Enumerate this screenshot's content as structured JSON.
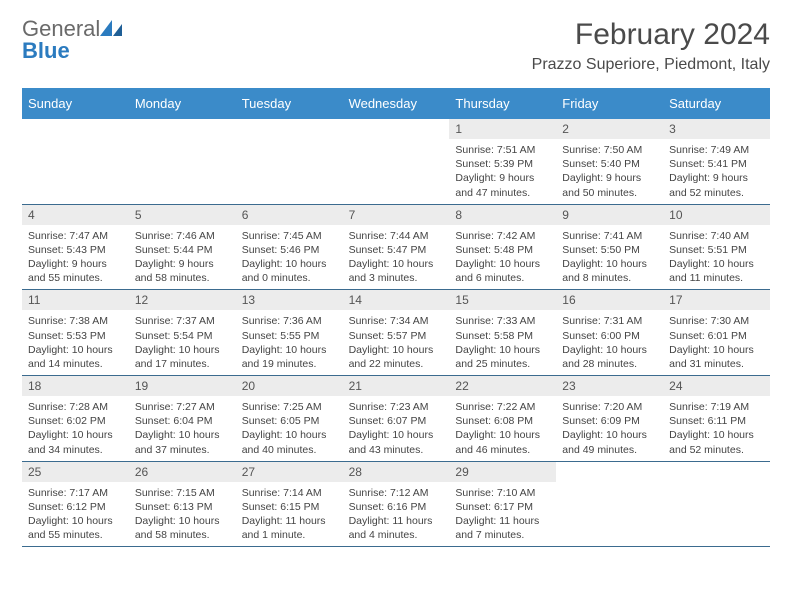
{
  "logo": {
    "text_general": "General",
    "text_blue": "Blue"
  },
  "title": "February 2024",
  "location": "Prazzo Superiore, Piedmont, Italy",
  "colors": {
    "header_bg": "#3b8bc9",
    "header_text": "#ffffff",
    "daynum_bg": "#ececec",
    "week_border": "#3b6b8f",
    "logo_general": "#6a6a6a",
    "logo_blue": "#2b7bbf"
  },
  "day_labels": [
    "Sunday",
    "Monday",
    "Tuesday",
    "Wednesday",
    "Thursday",
    "Friday",
    "Saturday"
  ],
  "weeks": [
    [
      null,
      null,
      null,
      null,
      {
        "n": "1",
        "sr": "Sunrise: 7:51 AM",
        "ss": "Sunset: 5:39 PM",
        "dl1": "Daylight: 9 hours",
        "dl2": "and 47 minutes."
      },
      {
        "n": "2",
        "sr": "Sunrise: 7:50 AM",
        "ss": "Sunset: 5:40 PM",
        "dl1": "Daylight: 9 hours",
        "dl2": "and 50 minutes."
      },
      {
        "n": "3",
        "sr": "Sunrise: 7:49 AM",
        "ss": "Sunset: 5:41 PM",
        "dl1": "Daylight: 9 hours",
        "dl2": "and 52 minutes."
      }
    ],
    [
      {
        "n": "4",
        "sr": "Sunrise: 7:47 AM",
        "ss": "Sunset: 5:43 PM",
        "dl1": "Daylight: 9 hours",
        "dl2": "and 55 minutes."
      },
      {
        "n": "5",
        "sr": "Sunrise: 7:46 AM",
        "ss": "Sunset: 5:44 PM",
        "dl1": "Daylight: 9 hours",
        "dl2": "and 58 minutes."
      },
      {
        "n": "6",
        "sr": "Sunrise: 7:45 AM",
        "ss": "Sunset: 5:46 PM",
        "dl1": "Daylight: 10 hours",
        "dl2": "and 0 minutes."
      },
      {
        "n": "7",
        "sr": "Sunrise: 7:44 AM",
        "ss": "Sunset: 5:47 PM",
        "dl1": "Daylight: 10 hours",
        "dl2": "and 3 minutes."
      },
      {
        "n": "8",
        "sr": "Sunrise: 7:42 AM",
        "ss": "Sunset: 5:48 PM",
        "dl1": "Daylight: 10 hours",
        "dl2": "and 6 minutes."
      },
      {
        "n": "9",
        "sr": "Sunrise: 7:41 AM",
        "ss": "Sunset: 5:50 PM",
        "dl1": "Daylight: 10 hours",
        "dl2": "and 8 minutes."
      },
      {
        "n": "10",
        "sr": "Sunrise: 7:40 AM",
        "ss": "Sunset: 5:51 PM",
        "dl1": "Daylight: 10 hours",
        "dl2": "and 11 minutes."
      }
    ],
    [
      {
        "n": "11",
        "sr": "Sunrise: 7:38 AM",
        "ss": "Sunset: 5:53 PM",
        "dl1": "Daylight: 10 hours",
        "dl2": "and 14 minutes."
      },
      {
        "n": "12",
        "sr": "Sunrise: 7:37 AM",
        "ss": "Sunset: 5:54 PM",
        "dl1": "Daylight: 10 hours",
        "dl2": "and 17 minutes."
      },
      {
        "n": "13",
        "sr": "Sunrise: 7:36 AM",
        "ss": "Sunset: 5:55 PM",
        "dl1": "Daylight: 10 hours",
        "dl2": "and 19 minutes."
      },
      {
        "n": "14",
        "sr": "Sunrise: 7:34 AM",
        "ss": "Sunset: 5:57 PM",
        "dl1": "Daylight: 10 hours",
        "dl2": "and 22 minutes."
      },
      {
        "n": "15",
        "sr": "Sunrise: 7:33 AM",
        "ss": "Sunset: 5:58 PM",
        "dl1": "Daylight: 10 hours",
        "dl2": "and 25 minutes."
      },
      {
        "n": "16",
        "sr": "Sunrise: 7:31 AM",
        "ss": "Sunset: 6:00 PM",
        "dl1": "Daylight: 10 hours",
        "dl2": "and 28 minutes."
      },
      {
        "n": "17",
        "sr": "Sunrise: 7:30 AM",
        "ss": "Sunset: 6:01 PM",
        "dl1": "Daylight: 10 hours",
        "dl2": "and 31 minutes."
      }
    ],
    [
      {
        "n": "18",
        "sr": "Sunrise: 7:28 AM",
        "ss": "Sunset: 6:02 PM",
        "dl1": "Daylight: 10 hours",
        "dl2": "and 34 minutes."
      },
      {
        "n": "19",
        "sr": "Sunrise: 7:27 AM",
        "ss": "Sunset: 6:04 PM",
        "dl1": "Daylight: 10 hours",
        "dl2": "and 37 minutes."
      },
      {
        "n": "20",
        "sr": "Sunrise: 7:25 AM",
        "ss": "Sunset: 6:05 PM",
        "dl1": "Daylight: 10 hours",
        "dl2": "and 40 minutes."
      },
      {
        "n": "21",
        "sr": "Sunrise: 7:23 AM",
        "ss": "Sunset: 6:07 PM",
        "dl1": "Daylight: 10 hours",
        "dl2": "and 43 minutes."
      },
      {
        "n": "22",
        "sr": "Sunrise: 7:22 AM",
        "ss": "Sunset: 6:08 PM",
        "dl1": "Daylight: 10 hours",
        "dl2": "and 46 minutes."
      },
      {
        "n": "23",
        "sr": "Sunrise: 7:20 AM",
        "ss": "Sunset: 6:09 PM",
        "dl1": "Daylight: 10 hours",
        "dl2": "and 49 minutes."
      },
      {
        "n": "24",
        "sr": "Sunrise: 7:19 AM",
        "ss": "Sunset: 6:11 PM",
        "dl1": "Daylight: 10 hours",
        "dl2": "and 52 minutes."
      }
    ],
    [
      {
        "n": "25",
        "sr": "Sunrise: 7:17 AM",
        "ss": "Sunset: 6:12 PM",
        "dl1": "Daylight: 10 hours",
        "dl2": "and 55 minutes."
      },
      {
        "n": "26",
        "sr": "Sunrise: 7:15 AM",
        "ss": "Sunset: 6:13 PM",
        "dl1": "Daylight: 10 hours",
        "dl2": "and 58 minutes."
      },
      {
        "n": "27",
        "sr": "Sunrise: 7:14 AM",
        "ss": "Sunset: 6:15 PM",
        "dl1": "Daylight: 11 hours",
        "dl2": "and 1 minute."
      },
      {
        "n": "28",
        "sr": "Sunrise: 7:12 AM",
        "ss": "Sunset: 6:16 PM",
        "dl1": "Daylight: 11 hours",
        "dl2": "and 4 minutes."
      },
      {
        "n": "29",
        "sr": "Sunrise: 7:10 AM",
        "ss": "Sunset: 6:17 PM",
        "dl1": "Daylight: 11 hours",
        "dl2": "and 7 minutes."
      },
      null,
      null
    ]
  ]
}
